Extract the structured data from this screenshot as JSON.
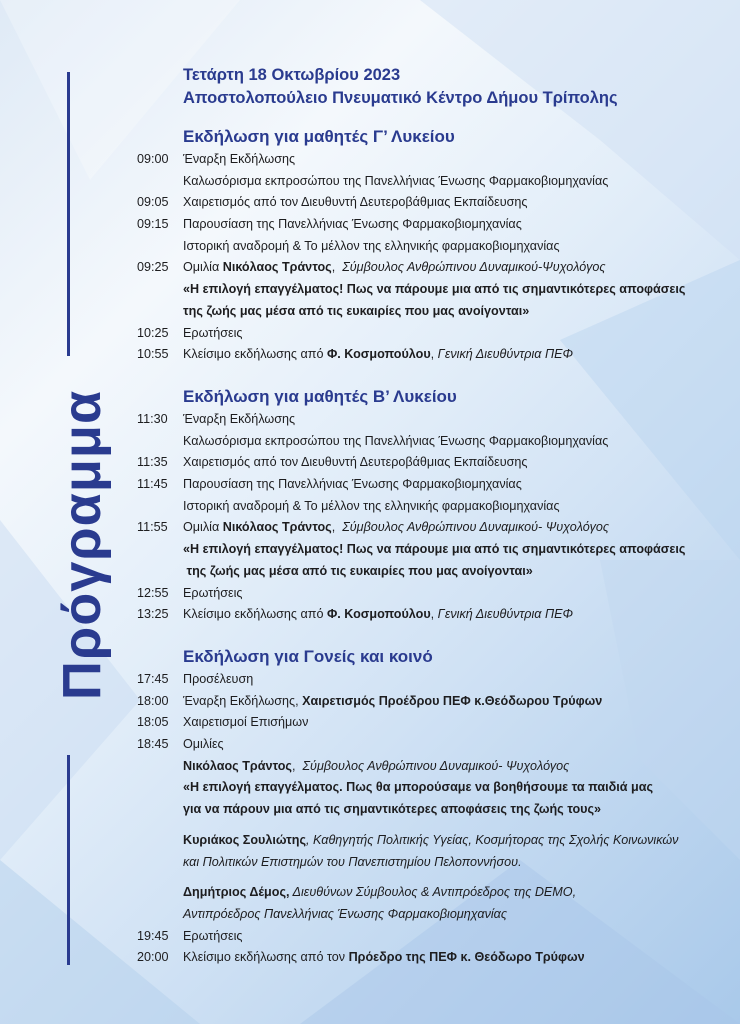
{
  "side_title": "Πρόγραμμα",
  "header": {
    "date": "Τετάρτη 18 Οκτωβρίου 2023",
    "venue": "Αποστολοπούλειο Πνευματικό Κέντρο Δήμου Τρίπολης"
  },
  "colors": {
    "accent": "#2a3b8f"
  },
  "sections": [
    {
      "title": "Εκδήλωση για μαθητές Γ’ Λυκείου",
      "rows": [
        {
          "time": "09:00",
          "parts": [
            {
              "t": "Έναρξη Εκδήλωσης",
              "s": ""
            }
          ]
        },
        {
          "time": "",
          "parts": [
            {
              "t": "Καλωσόρισμα εκπροσώπου της Πανελλήνιας Ένωσης Φαρμακοβιομηχανίας",
              "s": ""
            }
          ]
        },
        {
          "time": "09:05",
          "parts": [
            {
              "t": "Χαιρετισμός από τον Διευθυντή Δευτεροβάθμιας Εκπαίδευσης",
              "s": ""
            }
          ]
        },
        {
          "time": "09:15",
          "parts": [
            {
              "t": "Παρουσίαση της Πανελλήνιας Ένωσης Φαρμακοβιομηχανίας",
              "s": ""
            }
          ]
        },
        {
          "time": "",
          "parts": [
            {
              "t": "Ιστορική αναδρομή & Το μέλλον της ελληνικής φαρμακοβιομηχανίας",
              "s": ""
            }
          ]
        },
        {
          "time": "09:25",
          "parts": [
            {
              "t": "Ομιλία ",
              "s": ""
            },
            {
              "t": "Νικόλαος Τράντος",
              "s": "b"
            },
            {
              "t": ",  ",
              "s": ""
            },
            {
              "t": "Σύμβουλος Ανθρώπινου Δυναμικού-Ψυχολόγος",
              "s": "i"
            }
          ]
        },
        {
          "time": "",
          "parts": [
            {
              "t": "«Η επιλογή επαγγέλματος! Πως να πάρουμε μια από τις σημαντικότερες αποφάσεις",
              "s": "b"
            }
          ]
        },
        {
          "time": "",
          "parts": [
            {
              "t": "της ζωής μας μέσα από τις ευκαιρίες που μας ανοίγονται»",
              "s": "b"
            }
          ]
        },
        {
          "time": "10:25",
          "parts": [
            {
              "t": "Ερωτήσεις",
              "s": ""
            }
          ]
        },
        {
          "time": "10:55",
          "parts": [
            {
              "t": "Κλείσιμο εκδήλωσης από ",
              "s": ""
            },
            {
              "t": "Φ. Κοσμοπούλου",
              "s": "b"
            },
            {
              "t": ", ",
              "s": ""
            },
            {
              "t": "Γενική Διευθύντρια ΠΕΦ",
              "s": "i"
            }
          ]
        }
      ]
    },
    {
      "title": "Εκδήλωση για μαθητές Β’ Λυκείου",
      "rows": [
        {
          "time": "11:30",
          "parts": [
            {
              "t": "Έναρξη Εκδήλωσης",
              "s": ""
            }
          ]
        },
        {
          "time": "",
          "parts": [
            {
              "t": "Καλωσόρισμα εκπροσώπου της Πανελλήνιας Ένωσης Φαρμακοβιομηχανίας",
              "s": ""
            }
          ]
        },
        {
          "time": "11:35",
          "parts": [
            {
              "t": "Χαιρετισμός από τον Διευθυντή Δευτεροβάθμιας Εκπαίδευσης",
              "s": ""
            }
          ]
        },
        {
          "time": "11:45",
          "parts": [
            {
              "t": "Παρουσίαση της Πανελλήνιας Ένωσης Φαρμακοβιομηχανίας",
              "s": ""
            }
          ]
        },
        {
          "time": "",
          "parts": [
            {
              "t": "Ιστορική αναδρομή & Το μέλλον της ελληνικής φαρμακοβιομηχανίας",
              "s": ""
            }
          ]
        },
        {
          "time": "11:55",
          "parts": [
            {
              "t": "Ομιλία ",
              "s": ""
            },
            {
              "t": "Νικόλαος Τράντος",
              "s": "b"
            },
            {
              "t": ",  ",
              "s": ""
            },
            {
              "t": "Σύμβουλος Ανθρώπινου Δυναμικού- Ψυχολόγος",
              "s": "i"
            }
          ]
        },
        {
          "time": "",
          "parts": [
            {
              "t": "«Η επιλογή επαγγέλματος! Πως να πάρουμε μια από τις σημαντικότερες αποφάσεις",
              "s": "b"
            }
          ]
        },
        {
          "time": "",
          "parts": [
            {
              "t": " της ζωής μας μέσα από τις ευκαιρίες που μας ανοίγονται»",
              "s": "b"
            }
          ]
        },
        {
          "time": "12:55",
          "parts": [
            {
              "t": "Ερωτήσεις",
              "s": ""
            }
          ]
        },
        {
          "time": "13:25",
          "parts": [
            {
              "t": "Κλείσιμο εκδήλωσης από ",
              "s": ""
            },
            {
              "t": "Φ. Κοσμοπούλου",
              "s": "b"
            },
            {
              "t": ", ",
              "s": ""
            },
            {
              "t": "Γενική Διευθύντρια ΠΕΦ",
              "s": "i"
            }
          ]
        }
      ]
    },
    {
      "title": "Εκδήλωση για Γονείς και κοινό",
      "rows": [
        {
          "time": "17:45",
          "parts": [
            {
              "t": "Προσέλευση",
              "s": ""
            }
          ]
        },
        {
          "time": "18:00",
          "parts": [
            {
              "t": "Έναρξη Εκδήλωσης, ",
              "s": ""
            },
            {
              "t": "Χαιρετισμός Προέδρου ΠΕΦ κ.Θεόδωρου Τρύφων",
              "s": "b"
            }
          ]
        },
        {
          "time": "18:05",
          "parts": [
            {
              "t": "Χαιρετισμοί Επισήμων",
              "s": ""
            }
          ]
        },
        {
          "time": "18:45",
          "parts": [
            {
              "t": "Ομιλίες",
              "s": ""
            }
          ]
        },
        {
          "time": "",
          "parts": [
            {
              "t": "Νικόλαος Τράντος",
              "s": "b"
            },
            {
              "t": ",  ",
              "s": ""
            },
            {
              "t": "Σύμβουλος Ανθρώπινου Δυναμικού- Ψυχολόγος",
              "s": "i"
            }
          ]
        },
        {
          "time": "",
          "parts": [
            {
              "t": "«Η επιλογή επαγγέλματος. Πως θα μπορούσαμε να βοηθήσουμε τα παιδιά μας",
              "s": "b"
            }
          ]
        },
        {
          "time": "",
          "parts": [
            {
              "t": "για να πάρουν μια από τις σημαντικότερες αποφάσεις της ζωής τους»",
              "s": "b"
            }
          ]
        },
        {
          "time": "",
          "gap": true,
          "parts": [
            {
              "t": "Κυριάκος Σουλιώτης",
              "s": "b"
            },
            {
              "t": ", Καθηγητής Πολιτικής Υγείας, Κοσμήτορας της Σχολής Κοινωνικών",
              "s": "i"
            }
          ]
        },
        {
          "time": "",
          "parts": [
            {
              "t": "και Πολιτικών Επιστημών του Πανεπιστημίου Πελοποννήσου.",
              "s": "i"
            }
          ]
        },
        {
          "time": "",
          "gap": true,
          "parts": [
            {
              "t": "Δημήτριος Δέμος,",
              "s": "b"
            },
            {
              "t": " Διευθύνων Σύμβουλος & Αντιπρόεδρος της DEMO,",
              "s": "i"
            }
          ]
        },
        {
          "time": "",
          "parts": [
            {
              "t": "Αντιπρόεδρος Πανελλήνιας Ένωσης Φαρμακοβιομηχανίας",
              "s": "i"
            }
          ]
        },
        {
          "time": "19:45",
          "parts": [
            {
              "t": "Ερωτήσεις",
              "s": ""
            }
          ]
        },
        {
          "time": "20:00",
          "parts": [
            {
              "t": "Κλείσιμο εκδήλωσης από τον ",
              "s": ""
            },
            {
              "t": "Πρόεδρο της ΠΕΦ κ. Θεόδωρο Τρύφων",
              "s": "b"
            }
          ]
        }
      ]
    }
  ]
}
